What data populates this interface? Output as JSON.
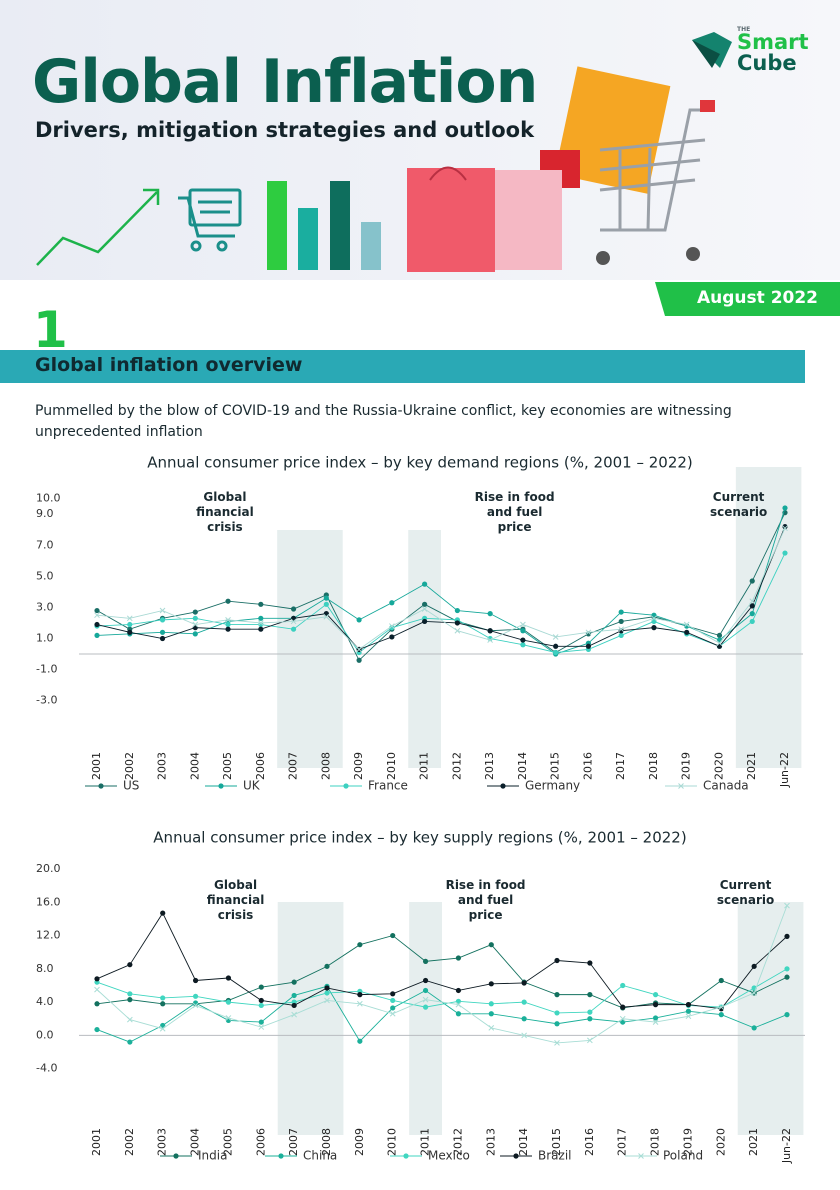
{
  "header": {
    "title": "Global Inflation",
    "subtitle": "Drivers, mitigation strategies and outlook",
    "logo": {
      "small": "THE",
      "line1": "Smart",
      "line2": "Cube"
    },
    "date": "August 2022"
  },
  "section": {
    "number": "1",
    "title": "Global inflation overview",
    "intro": "Pummelled by the blow of COVID-19 and the Russia-Ukraine conflict, key economies are witnessing unprecedented inflation"
  },
  "chart_data": [
    {
      "type": "line",
      "title": "Annual consumer price index – by key demand regions (%, 2001 – 2022)",
      "categories": [
        "2001",
        "2002",
        "2003",
        "2004",
        "2005",
        "2006",
        "2007",
        "2008",
        "2009",
        "2010",
        "2011",
        "2012",
        "2013",
        "2014",
        "2015",
        "2016",
        "2017",
        "2018",
        "2019",
        "2020",
        "2021",
        "Jun-22"
      ],
      "series": [
        {
          "name": "US",
          "color": "#1a6e66",
          "marker": "circle",
          "values": [
            2.8,
            1.6,
            2.3,
            2.7,
            3.4,
            3.2,
            2.9,
            3.8,
            -0.4,
            1.6,
            3.2,
            2.1,
            1.5,
            1.6,
            0.1,
            1.3,
            2.1,
            2.4,
            1.8,
            1.2,
            4.7,
            9.1
          ]
        },
        {
          "name": "UK",
          "color": "#16a89a",
          "marker": "circle",
          "values": [
            1.2,
            1.3,
            1.4,
            1.3,
            2.1,
            2.3,
            2.3,
            3.6,
            2.2,
            3.3,
            4.5,
            2.8,
            2.6,
            1.5,
            0.0,
            0.7,
            2.7,
            2.5,
            1.8,
            0.9,
            2.6,
            9.4
          ]
        },
        {
          "name": "France",
          "color": "#3cd0c0",
          "marker": "circle",
          "values": [
            1.8,
            1.9,
            2.2,
            2.3,
            1.9,
            1.9,
            1.6,
            3.2,
            0.1,
            1.7,
            2.3,
            2.2,
            1.0,
            0.6,
            0.1,
            0.3,
            1.2,
            2.1,
            1.3,
            0.5,
            2.1,
            6.5
          ]
        },
        {
          "name": "Germany",
          "color": "#0a1f2a",
          "marker": "circle",
          "values": [
            1.9,
            1.4,
            1.0,
            1.7,
            1.6,
            1.6,
            2.3,
            2.6,
            0.3,
            1.1,
            2.1,
            2.0,
            1.5,
            0.9,
            0.5,
            0.5,
            1.5,
            1.7,
            1.4,
            0.5,
            3.1,
            8.2
          ]
        },
        {
          "name": "Canada",
          "color": "#a9d9d4",
          "marker": "x",
          "values": [
            2.5,
            2.3,
            2.8,
            1.9,
            2.2,
            2.0,
            2.1,
            2.4,
            0.3,
            1.8,
            2.9,
            1.5,
            0.9,
            1.9,
            1.1,
            1.4,
            1.6,
            2.3,
            1.9,
            0.7,
            3.4,
            8.1
          ]
        }
      ],
      "ylim": [
        -3.6,
        11.2
      ],
      "yticks": [
        {
          "value": 10,
          "label": "10.0"
        },
        {
          "value": 9,
          "label": "9.0"
        },
        {
          "value": 7,
          "label": "7.0"
        },
        {
          "value": 5,
          "label": "5.0"
        },
        {
          "value": 3,
          "label": "3.0"
        },
        {
          "value": 1,
          "label": "1.0"
        },
        {
          "value": -1,
          "label": "-1.0"
        },
        {
          "value": -3,
          "label": "-3.0"
        }
      ],
      "highlights": [
        {
          "from": "2007",
          "to": "2008",
          "label": "Global financial crisis"
        },
        {
          "from": "2011",
          "to": "2011",
          "label": "Rise in food and fuel price"
        },
        {
          "from": "2021",
          "to": "Jun-22",
          "label": "Current scenario"
        }
      ],
      "grid": false,
      "legend": "bottom"
    },
    {
      "type": "line",
      "title": "Annual consumer price index – by key supply regions (%, 2001 – 2022)",
      "categories": [
        "2001",
        "2002",
        "2003",
        "2004",
        "2005",
        "2006",
        "2007",
        "2008",
        "2009",
        "2010",
        "2011",
        "2012",
        "2013",
        "2014",
        "2015",
        "2016",
        "2017",
        "2018",
        "2019",
        "2020",
        "2021",
        "Jun-22"
      ],
      "series": [
        {
          "name": "India",
          "color": "#13715f",
          "marker": "circle",
          "values": [
            3.8,
            4.3,
            3.8,
            3.8,
            4.2,
            5.8,
            6.4,
            8.3,
            10.9,
            12.0,
            8.9,
            9.3,
            10.9,
            6.4,
            4.9,
            4.9,
            3.3,
            3.9,
            3.7,
            6.6,
            5.1,
            7.0
          ]
        },
        {
          "name": "China",
          "color": "#1bb09a",
          "marker": "circle",
          "values": [
            0.7,
            -0.8,
            1.2,
            3.9,
            1.8,
            1.6,
            4.8,
            5.9,
            -0.7,
            3.3,
            5.4,
            2.6,
            2.6,
            2.0,
            1.4,
            2.0,
            1.6,
            2.1,
            2.9,
            2.5,
            0.9,
            2.5
          ]
        },
        {
          "name": "Mexico",
          "color": "#40d6c0",
          "marker": "circle",
          "values": [
            6.4,
            5.0,
            4.5,
            4.7,
            4.0,
            3.6,
            4.0,
            5.1,
            5.3,
            4.2,
            3.4,
            4.1,
            3.8,
            4.0,
            2.7,
            2.8,
            6.0,
            4.9,
            3.6,
            3.4,
            5.7,
            8.0
          ]
        },
        {
          "name": "Brazil",
          "color": "#0d1a22",
          "marker": "circle",
          "values": [
            6.8,
            8.5,
            14.7,
            6.6,
            6.9,
            4.2,
            3.6,
            5.7,
            4.9,
            5.0,
            6.6,
            5.4,
            6.2,
            6.3,
            9.0,
            8.7,
            3.4,
            3.7,
            3.7,
            3.2,
            8.3,
            11.9
          ]
        },
        {
          "name": "Poland",
          "color": "#a8ddd5",
          "marker": "x",
          "values": [
            5.5,
            1.9,
            0.8,
            3.6,
            2.1,
            1.0,
            2.5,
            4.2,
            3.8,
            2.6,
            4.3,
            3.7,
            0.9,
            0.0,
            -0.9,
            -0.6,
            2.0,
            1.6,
            2.3,
            3.4,
            5.1,
            15.6
          ]
        }
      ],
      "ylim": [
        -5,
        20
      ],
      "yticks": [
        {
          "value": 20,
          "label": "20.0"
        },
        {
          "value": 16,
          "label": "16.0"
        },
        {
          "value": 12,
          "label": "12.0"
        },
        {
          "value": 8,
          "label": "8.0"
        },
        {
          "value": 4,
          "label": "4.0"
        },
        {
          "value": 0,
          "label": "0.0"
        },
        {
          "value": -4,
          "label": "-4.0"
        }
      ],
      "highlights": [
        {
          "from": "2007",
          "to": "2008",
          "label": "Global financial crisis"
        },
        {
          "from": "2011",
          "to": "2011",
          "label": "Rise in food and fuel price"
        },
        {
          "from": "2021",
          "to": "Jun-22",
          "label": "Current scenario"
        }
      ],
      "grid": false,
      "legend": "bottom"
    }
  ]
}
